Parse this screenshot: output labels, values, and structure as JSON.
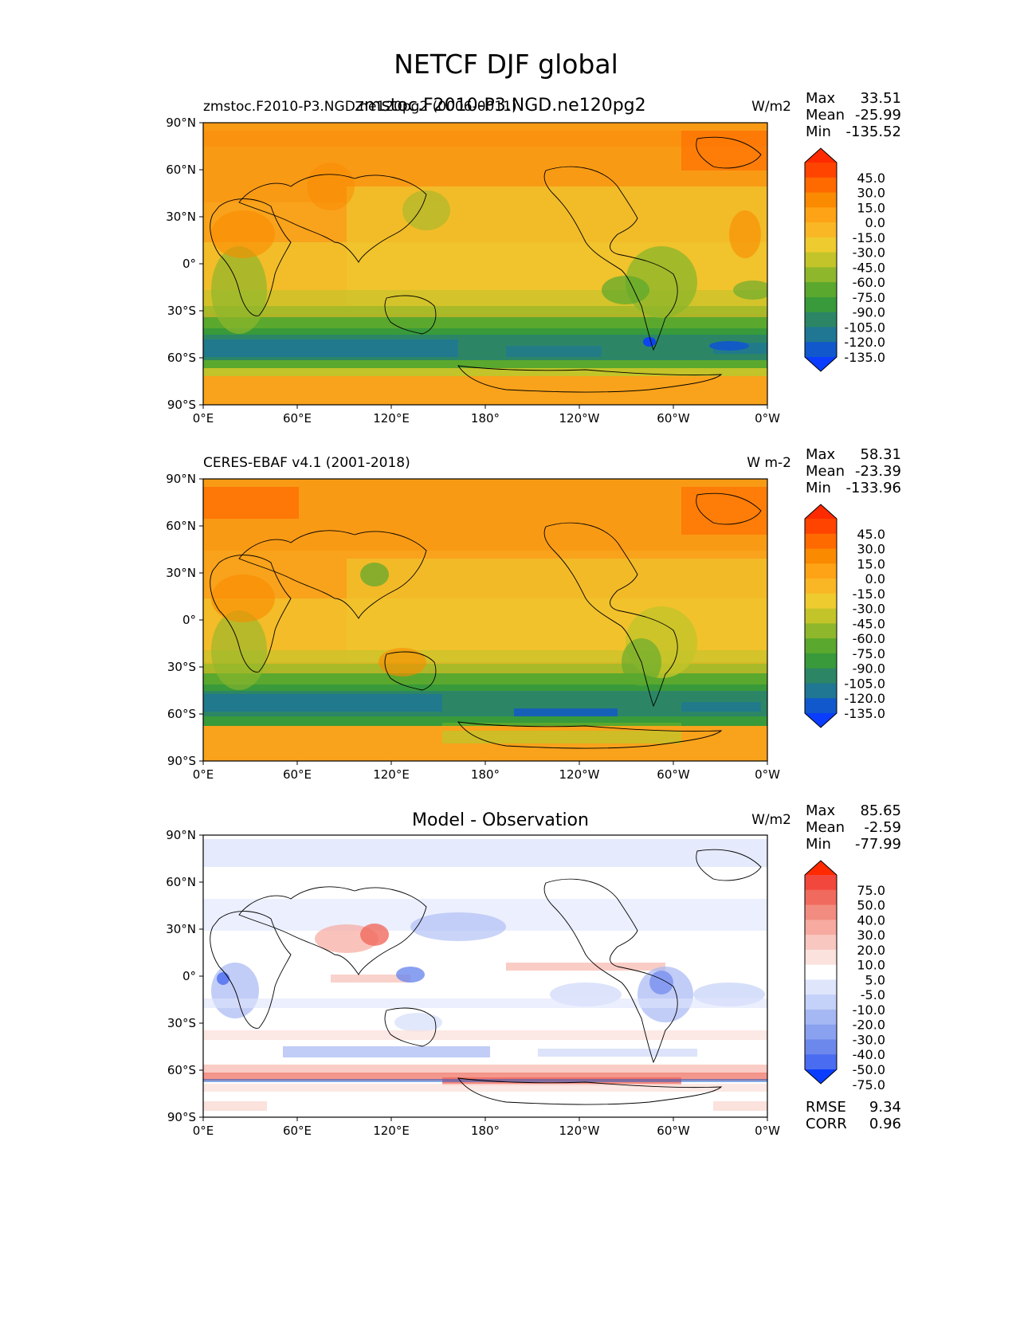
{
  "figure": {
    "title": "NETCF DJF global"
  },
  "axis_ticks": {
    "lat": [
      "90°N",
      "60°N",
      "30°N",
      "0°",
      "30°S",
      "60°S",
      "90°S"
    ],
    "lon": [
      "0°E",
      "60°E",
      "120°E",
      "180°",
      "120°W",
      "60°W",
      "0°W"
    ]
  },
  "chart_data": [
    {
      "type": "heatmap",
      "title_left": "zmstoc.F2010-P3.NGD.ne120pg2 (0006-0011)",
      "title_center": "zmstoc.F2010-P3.NGD.ne120pg2",
      "units": "W/m2",
      "stats": {
        "max_label": "Max",
        "max": "33.51",
        "mean_label": "Mean",
        "mean": "-25.99",
        "min_label": "Min",
        "min": "-135.52"
      },
      "colorbar_labels": [
        "45.0",
        "30.0",
        "15.0",
        "0.0",
        "-15.0",
        "-30.0",
        "-45.0",
        "-60.0",
        "-75.0",
        "-90.0",
        "-105.0",
        "-120.0",
        "-135.0"
      ],
      "colorbar_colors": [
        "#ff2a00",
        "#ff4400",
        "#ff6a00",
        "#fa8a00",
        "#fda315",
        "#f9b726",
        "#eecb2e",
        "#c3c429",
        "#8fb72b",
        "#5aa82e",
        "#389a3a",
        "#2c8666",
        "#1f7793",
        "#1158cc",
        "#0a3dff"
      ],
      "xrange": [
        0,
        360
      ],
      "yrange": [
        -90,
        90
      ]
    },
    {
      "type": "heatmap",
      "title_left": "CERES-EBAF v4.1 (2001-2018)",
      "units": "W m-2",
      "stats": {
        "max_label": "Max",
        "max": "58.31",
        "mean_label": "Mean",
        "mean": "-23.39",
        "min_label": "Min",
        "min": "-133.96"
      },
      "colorbar_labels": [
        "45.0",
        "30.0",
        "15.0",
        "0.0",
        "-15.0",
        "-30.0",
        "-45.0",
        "-60.0",
        "-75.0",
        "-90.0",
        "-105.0",
        "-120.0",
        "-135.0"
      ],
      "colorbar_colors": [
        "#ff2a00",
        "#ff4400",
        "#ff6a00",
        "#fa8a00",
        "#fda315",
        "#f9b726",
        "#eecb2e",
        "#c3c429",
        "#8fb72b",
        "#5aa82e",
        "#389a3a",
        "#2c8666",
        "#1f7793",
        "#1158cc",
        "#0a3dff"
      ],
      "xrange": [
        0,
        360
      ],
      "yrange": [
        -90,
        90
      ]
    },
    {
      "type": "heatmap",
      "title_center": "Model - Observation",
      "units": "W/m2",
      "stats": {
        "max_label": "Max",
        "max": "85.65",
        "mean_label": "Mean",
        "mean": "-2.59",
        "min_label": "Min",
        "min": "-77.99"
      },
      "extra_stats": {
        "rmse_label": "RMSE",
        "rmse": "9.34",
        "corr_label": "CORR",
        "corr": "0.96"
      },
      "colorbar_labels": [
        "75.0",
        "50.0",
        "40.0",
        "30.0",
        "20.0",
        "10.0",
        "5.0",
        "-5.0",
        "-10.0",
        "-20.0",
        "-30.0",
        "-40.0",
        "-50.0",
        "-75.0"
      ],
      "colorbar_colors": [
        "#ff2a00",
        "#f2473c",
        "#f16a5e",
        "#f28c80",
        "#f6aaa0",
        "#f8c7bf",
        "#fbe2dd",
        "#ffffff",
        "#dfe5fb",
        "#c4d1f8",
        "#a6b8f3",
        "#8aa1ef",
        "#6d88ec",
        "#4a6cf0",
        "#0a3dff"
      ],
      "xrange": [
        0,
        360
      ],
      "yrange": [
        -90,
        90
      ]
    }
  ]
}
